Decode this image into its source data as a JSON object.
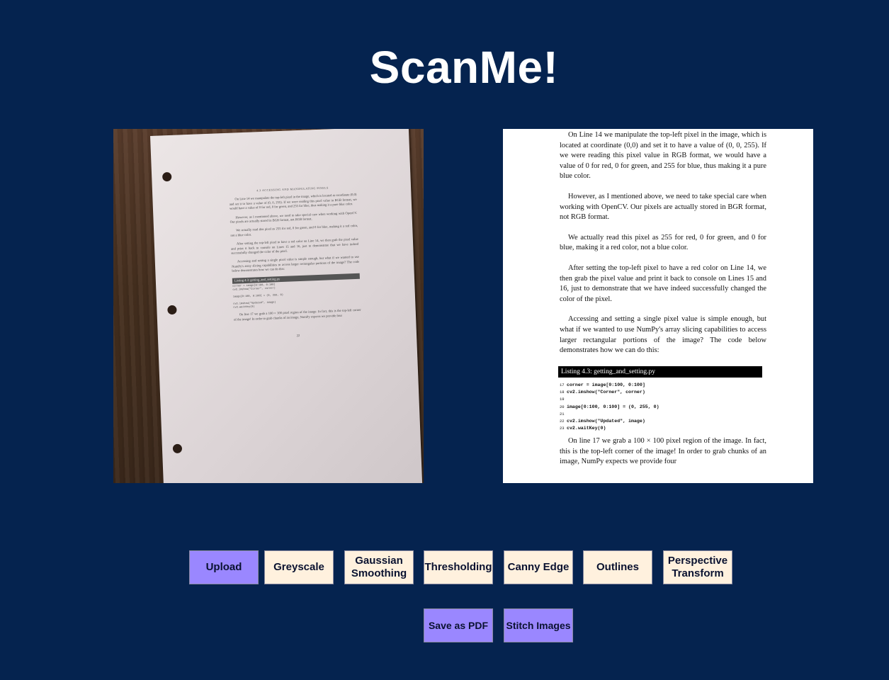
{
  "app": {
    "title": "ScanMe!"
  },
  "colors": {
    "background": "#05234f",
    "button_cream": "#fff1de",
    "button_violet": "#9a87ff"
  },
  "original_image": {
    "header": "4.3 ACCESSING AND MANIPULATING PIXELS",
    "paragraphs": [
      "On Line 14 we manipulate the top-left pixel in the image, which is located at coordinate (0,0) and set it to have a value of (0, 0, 255). If we were reading this pixel value in RGB format, we would have a value of 0 for red, 0 for green, and 255 for blue, thus making it a pure blue color.",
      "However, as I mentioned above, we need to take special care when working with OpenCV. Our pixels are actually stored in BGR format, not RGB format.",
      "We actually read this pixel as 255 for red, 0 for green, and 0 for blue, making it a red color, not a blue color.",
      "After setting the top-left pixel to have a red color on Line 14, we then grab the pixel value and print it back to console on Lines 15 and 16, just to demonstrate that we have indeed successfully changed the color of the pixel.",
      "Accessing and setting a single pixel value is simple enough, but what if we wanted to use NumPy's array slicing capabilities to access larger rectangular portions of the image? The code below demonstrates how we can do this:"
    ],
    "listing": "Listing 4.3: getting_and_setting.py",
    "code": [
      "corner = image[0:100, 0:100]",
      "cv2.imshow(\"Corner\", corner)",
      "",
      "image[0:100, 0:100] = (0, 255, 0)",
      "",
      "cv2.imshow(\"Updated\", image)",
      "cv2.waitKey(0)"
    ],
    "closing": "On line 17 we grab a 100 × 100 pixel region of the image. In fact, this is the top-left corner of the image! In order to grab chunks of an image, NumPy expects we provide four",
    "page_number": "22"
  },
  "scanned_image": {
    "paragraphs": [
      "On Line 14 we manipulate the top-left pixel in the image, which is located at coordinate (0,0) and set it to have a value of (0, 0, 255). If we were reading this pixel value in RGB format, we would have a value of 0 for red, 0 for green, and 255 for blue, thus making it a pure blue color.",
      "However, as I mentioned above, we need to take special care when working with OpenCV. Our pixels are actually stored in BGR format, not RGB format.",
      "We actually read this pixel as 255 for red, 0 for green, and 0 for blue, making it a red color, not a blue color.",
      "After setting the top-left pixel to have a red color on Line 14, we then grab the pixel value and print it back to console on Lines 15 and 16, just to demonstrate that we have indeed successfully changed the color of the pixel.",
      "Accessing and setting a single pixel value is simple enough, but what if we wanted to use NumPy's array slicing capabilities to access larger rectangular portions of the image? The code below demonstrates how we can do this:"
    ],
    "listing": "Listing 4.3: getting_and_setting.py",
    "code": [
      {
        "line": "17",
        "text": "corner = image[0:100, 0:100]"
      },
      {
        "line": "18",
        "text": "cv2.imshow(\"Corner\", corner)"
      },
      {
        "line": "19",
        "text": ""
      },
      {
        "line": "20",
        "text": "image[0:100, 0:100] = (0, 255, 0)"
      },
      {
        "line": "21",
        "text": ""
      },
      {
        "line": "22",
        "text": "cv2.imshow(\"Updated\", image)"
      },
      {
        "line": "23",
        "text": "cv2.waitKey(0)"
      }
    ],
    "closing": "On line 17 we grab a 100 × 100 pixel region of the image. In fact, this is the top-left corner of the image! In order to grab chunks of an image, NumPy expects we provide four"
  },
  "buttons": {
    "upload": "Upload",
    "greyscale": "Greyscale",
    "gaussian": "Gaussian\nSmoothing",
    "thresholding": "Thresholding",
    "canny": "Canny Edge",
    "outlines": "Outlines",
    "perspective": "Perspective\nTransform",
    "save_pdf": "Save as PDF",
    "stitch": "Stitch Images"
  }
}
